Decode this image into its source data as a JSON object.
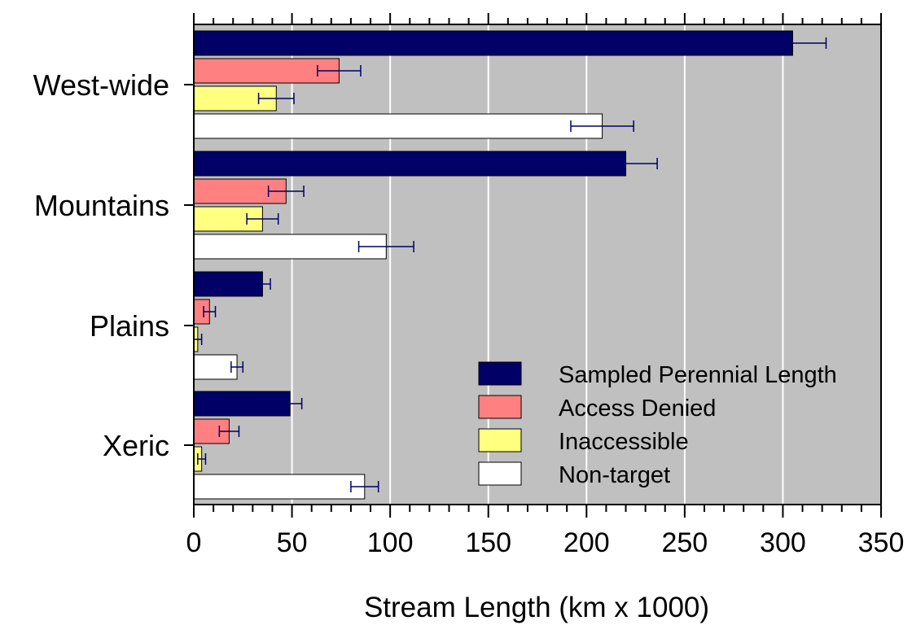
{
  "chart_data": {
    "type": "bar",
    "orientation": "horizontal",
    "categories": [
      "West-wide",
      "Mountains",
      "Plains",
      "Xeric"
    ],
    "series": [
      {
        "name": "Sampled Perennial Length",
        "color": "#000066",
        "values": [
          305,
          220,
          35,
          49
        ],
        "errors": [
          17,
          16,
          4,
          6
        ]
      },
      {
        "name": "Access Denied",
        "color": "#ff8080",
        "values": [
          74,
          47,
          8,
          18
        ],
        "errors": [
          11,
          9,
          3,
          5
        ]
      },
      {
        "name": "Inaccessible",
        "color": "#ffff80",
        "values": [
          42,
          35,
          2,
          4
        ],
        "errors": [
          9,
          8,
          2,
          2
        ]
      },
      {
        "name": "Non-target",
        "color": "#ffffff",
        "values": [
          208,
          98,
          22,
          87
        ],
        "errors": [
          16,
          14,
          3,
          7
        ]
      }
    ],
    "xlabel": "Stream Length (km x 1000)",
    "ylabel": "",
    "xlim": [
      0,
      350
    ],
    "xticks": [
      "0",
      "50",
      "100",
      "150",
      "200",
      "250",
      "300",
      "350"
    ],
    "plot_background": "#c0c0c0",
    "error_bar_color": "#000066",
    "grid": "vertical",
    "legend_position": "lower-right"
  }
}
